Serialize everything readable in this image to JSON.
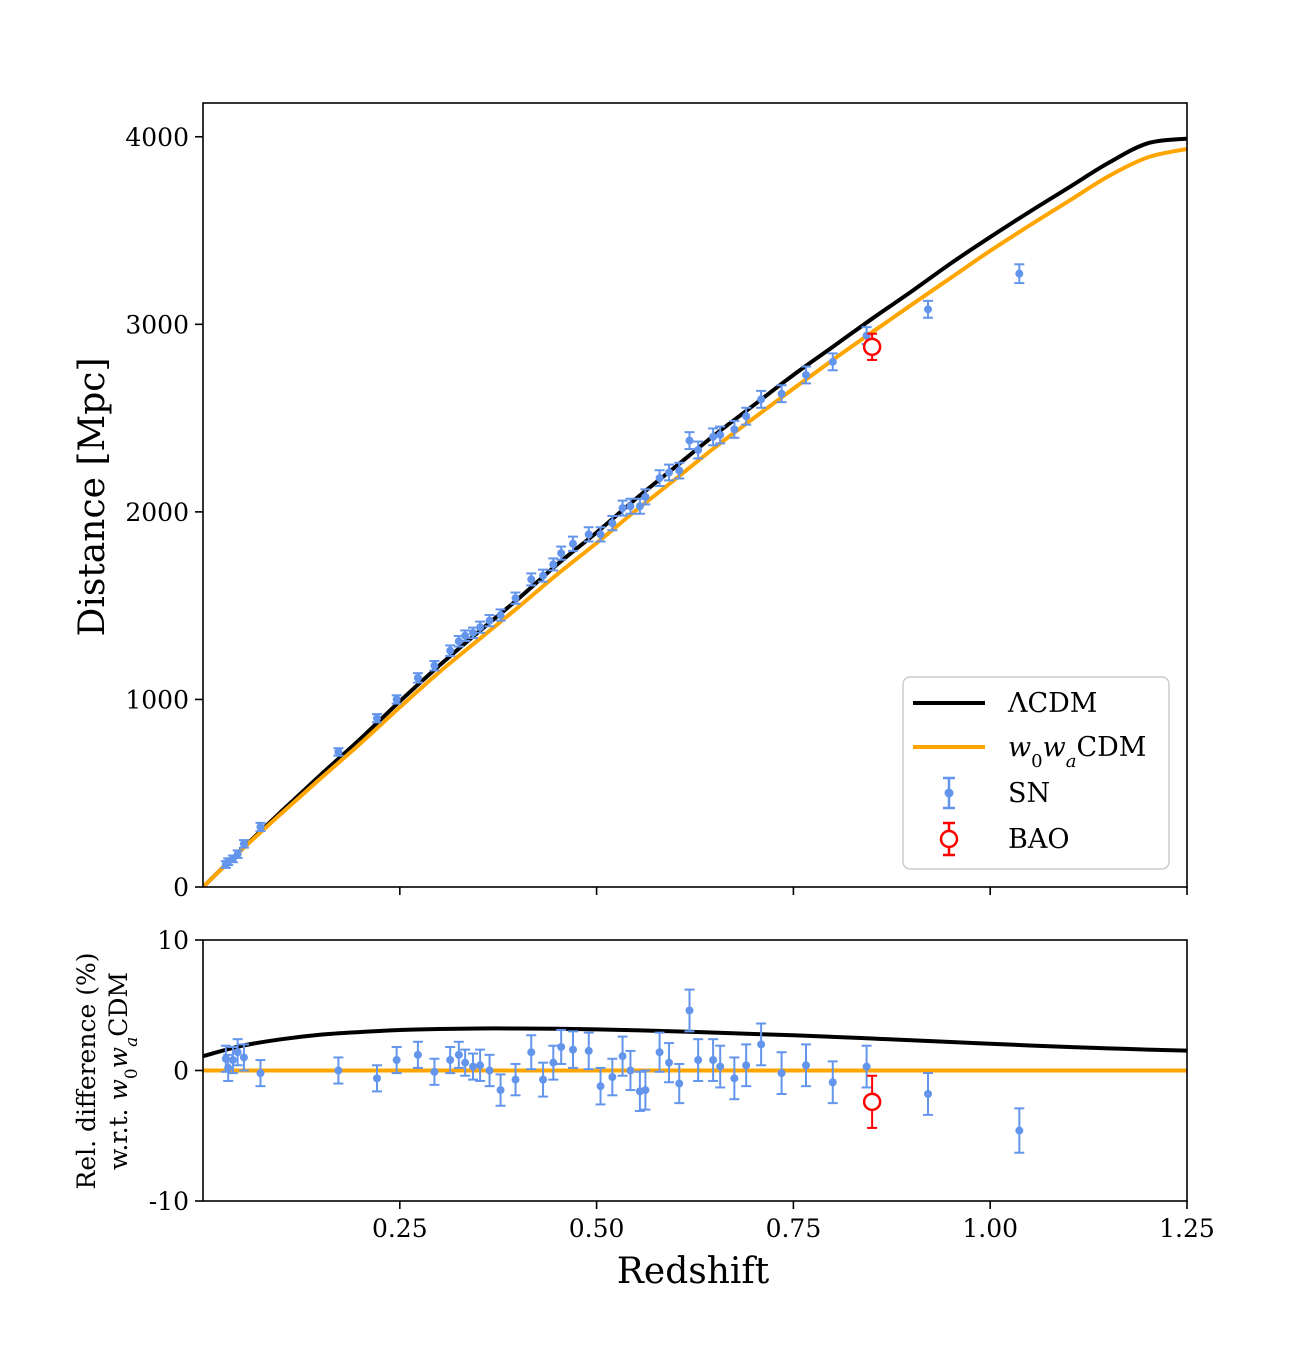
{
  "chart_data": [
    {
      "panel": "top",
      "type": "line",
      "title": "",
      "xlabel": "",
      "ylabel": "Distance [Mpc]",
      "xlim": [
        0.0,
        1.25
      ],
      "ylim": [
        0,
        4180
      ],
      "yticks": [
        0,
        1000,
        2000,
        3000,
        4000
      ],
      "ytick_labels": [
        "0",
        "1000",
        "2000",
        "3000",
        "4000"
      ],
      "legend_position": "lower-right",
      "grid": false,
      "series": [
        {
          "name": "ΛCDM",
          "kind": "line",
          "color": "#000000",
          "x": [
            0.0,
            0.05,
            0.1,
            0.15,
            0.2,
            0.25,
            0.3,
            0.35,
            0.4,
            0.45,
            0.5,
            0.55,
            0.6,
            0.65,
            0.7,
            0.75,
            0.8,
            0.85,
            0.9,
            0.95,
            1.0,
            1.05,
            1.1,
            1.15,
            1.2,
            1.25
          ],
          "y": [
            0,
            205,
            405,
            600,
            790,
            990,
            1180,
            1360,
            1535,
            1720,
            1890,
            2070,
            2240,
            2410,
            2570,
            2730,
            2880,
            3030,
            3175,
            3325,
            3465,
            3600,
            3730,
            3860,
            3965,
            3990
          ]
        },
        {
          "name": "w0waCDM",
          "kind": "line",
          "color": "#ffa500",
          "x": [
            0.0,
            0.05,
            0.1,
            0.15,
            0.2,
            0.25,
            0.3,
            0.35,
            0.4,
            0.45,
            0.5,
            0.55,
            0.6,
            0.65,
            0.7,
            0.75,
            0.8,
            0.85,
            0.9,
            0.95,
            1.0,
            1.05,
            1.1,
            1.15,
            1.2,
            1.25
          ],
          "y": [
            0,
            202,
            394,
            581,
            765,
            958,
            1145,
            1318,
            1490,
            1667,
            1834,
            2008,
            2174,
            2343,
            2501,
            2657,
            2810,
            2958,
            3104,
            3248,
            3392,
            3527,
            3658,
            3789,
            3890,
            3935
          ]
        },
        {
          "name": "SN",
          "kind": "errorbar",
          "color": "#6495ed",
          "x": [
            0.029,
            0.032,
            0.038,
            0.044,
            0.052,
            0.073,
            0.172,
            0.221,
            0.246,
            0.273,
            0.294,
            0.314,
            0.325,
            0.333,
            0.343,
            0.352,
            0.364,
            0.378,
            0.397,
            0.417,
            0.432,
            0.445,
            0.455,
            0.47,
            0.49,
            0.505,
            0.52,
            0.533,
            0.543,
            0.555,
            0.562,
            0.58,
            0.592,
            0.605,
            0.618,
            0.629,
            0.648,
            0.657,
            0.675,
            0.69,
            0.709,
            0.735,
            0.766,
            0.8,
            0.843,
            0.921,
            1.037
          ],
          "y": [
            120,
            135,
            150,
            175,
            230,
            320,
            720,
            900,
            1000,
            1115,
            1180,
            1260,
            1310,
            1340,
            1355,
            1385,
            1420,
            1450,
            1540,
            1640,
            1660,
            1720,
            1780,
            1830,
            1880,
            1880,
            1940,
            2020,
            2030,
            2030,
            2080,
            2180,
            2210,
            2220,
            2380,
            2330,
            2400,
            2410,
            2440,
            2510,
            2600,
            2630,
            2730,
            2800,
            2940,
            3080,
            3270
          ],
          "err": [
            18,
            18,
            18,
            20,
            20,
            22,
            20,
            22,
            22,
            25,
            25,
            28,
            28,
            28,
            28,
            30,
            30,
            30,
            30,
            32,
            32,
            32,
            35,
            38,
            38,
            38,
            38,
            40,
            40,
            40,
            40,
            42,
            42,
            42,
            45,
            45,
            45,
            45,
            45,
            45,
            45,
            45,
            45,
            45,
            45,
            45,
            50
          ],
          "rel_diff": [
            0.9,
            0.2,
            0.8,
            1.4,
            1.0,
            -0.2,
            0.0,
            -0.6,
            0.8,
            1.2,
            -0.1,
            0.8,
            1.2,
            0.6,
            0.3,
            0.4,
            0.0,
            -1.5,
            -0.7,
            1.4,
            -0.7,
            0.6,
            1.8,
            1.6,
            1.5,
            -1.2,
            -0.5,
            1.1,
            0.0,
            -1.6,
            -1.5,
            1.4,
            0.6,
            -1.0,
            4.6,
            0.8,
            0.8,
            0.3,
            -0.6,
            0.4,
            2.0,
            -0.2,
            0.4,
            -0.9,
            0.3,
            -1.8,
            -4.6
          ],
          "rel_err": [
            1.0,
            1.0,
            1.0,
            1.0,
            1.0,
            1.0,
            1.0,
            1.0,
            1.0,
            1.0,
            1.0,
            1.0,
            1.0,
            1.0,
            1.0,
            1.2,
            1.2,
            1.2,
            1.2,
            1.3,
            1.3,
            1.3,
            1.3,
            1.4,
            1.4,
            1.4,
            1.4,
            1.5,
            1.5,
            1.5,
            1.5,
            1.5,
            1.5,
            1.5,
            1.6,
            1.6,
            1.6,
            1.6,
            1.6,
            1.6,
            1.6,
            1.6,
            1.6,
            1.6,
            1.6,
            1.6,
            1.7
          ]
        },
        {
          "name": "BAO",
          "kind": "errorbar-open",
          "color": "#ff0000",
          "x": [
            0.85
          ],
          "y": [
            2880
          ],
          "err": [
            70
          ],
          "rel_diff": [
            -2.4
          ],
          "rel_err": [
            2.0
          ]
        }
      ]
    },
    {
      "panel": "bottom",
      "type": "line",
      "title": "",
      "xlabel": "Redshift",
      "ylabel_line1": "Rel. difference (%)",
      "ylabel_line2_prefix": "w.r.t. ",
      "ylabel_line2_model": "w0waCDM",
      "xlim": [
        0.0,
        1.25
      ],
      "ylim": [
        -10,
        10
      ],
      "xticks": [
        0.25,
        0.5,
        0.75,
        1.0,
        1.25
      ],
      "xtick_labels": [
        "0.25",
        "0.50",
        "0.75",
        "1.00",
        "1.25"
      ],
      "yticks": [
        -10,
        0,
        10
      ],
      "ytick_labels": [
        "-10",
        "0",
        "10"
      ],
      "series": [
        {
          "name": "ΛCDM",
          "color": "#000000",
          "x": [
            0.0,
            0.05,
            0.1,
            0.15,
            0.2,
            0.25,
            0.3,
            0.35,
            0.4,
            0.45,
            0.5,
            0.55,
            0.6,
            0.65,
            0.7,
            0.75,
            0.8,
            0.85,
            0.9,
            0.95,
            1.0,
            1.05,
            1.1,
            1.15,
            1.2,
            1.25
          ],
          "y": [
            1.1,
            1.9,
            2.4,
            2.75,
            2.95,
            3.1,
            3.18,
            3.22,
            3.22,
            3.2,
            3.15,
            3.08,
            3.0,
            2.9,
            2.8,
            2.7,
            2.58,
            2.45,
            2.32,
            2.18,
            2.05,
            1.92,
            1.8,
            1.7,
            1.6,
            1.52
          ]
        },
        {
          "name": "w0waCDM",
          "color": "#ffa500",
          "x": [
            0.0,
            1.25
          ],
          "y": [
            0,
            0
          ]
        }
      ]
    }
  ]
}
